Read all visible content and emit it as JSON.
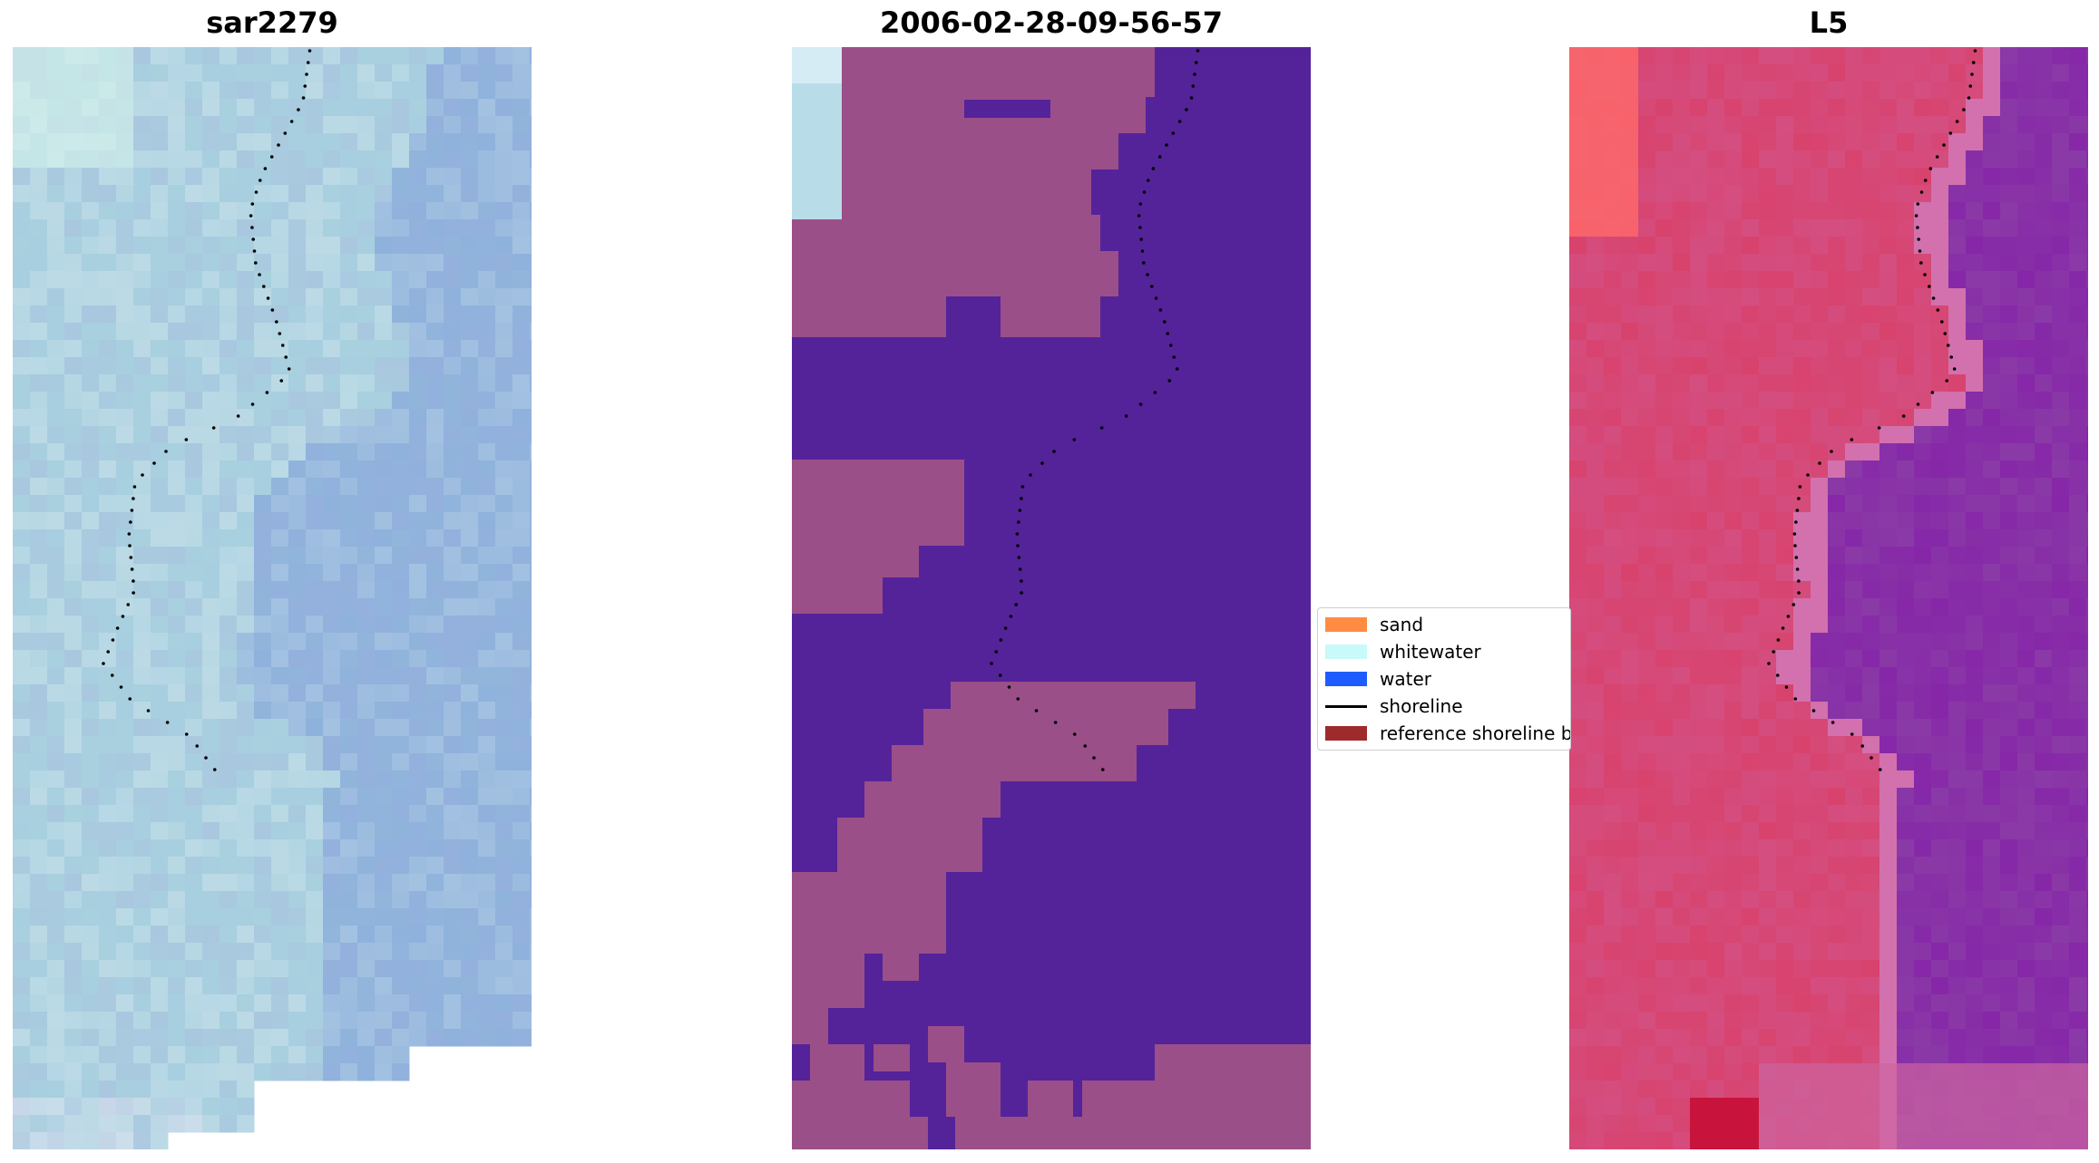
{
  "panels": [
    {
      "title": "sar2279",
      "kind": "rgb"
    },
    {
      "title": "2006-02-28-09-56-57",
      "kind": "classification"
    },
    {
      "title": "L5",
      "kind": "index"
    }
  ],
  "legend": {
    "items": [
      {
        "label": "sand",
        "color": "#ff8c42",
        "type": "patch"
      },
      {
        "label": "whitewater",
        "color": "#c8fafa",
        "type": "patch"
      },
      {
        "label": "water",
        "color": "#1f5cff",
        "type": "patch"
      },
      {
        "label": "shoreline",
        "color": "#000000",
        "type": "line"
      },
      {
        "label": "reference shoreline buffer",
        "color": "#9e2b2b",
        "type": "patch"
      }
    ]
  },
  "colors": {
    "rgb_water": "#8fb2dc",
    "rgb_land": "#a8cfe0",
    "class_land": "#9b4f88",
    "class_water": "#54239a",
    "class_whitewater": "#b9dde8",
    "index_land": "#d8436e",
    "index_water": "#8a3aa6",
    "index_hot": "#ff6a6a",
    "shoreline": "#000000"
  }
}
